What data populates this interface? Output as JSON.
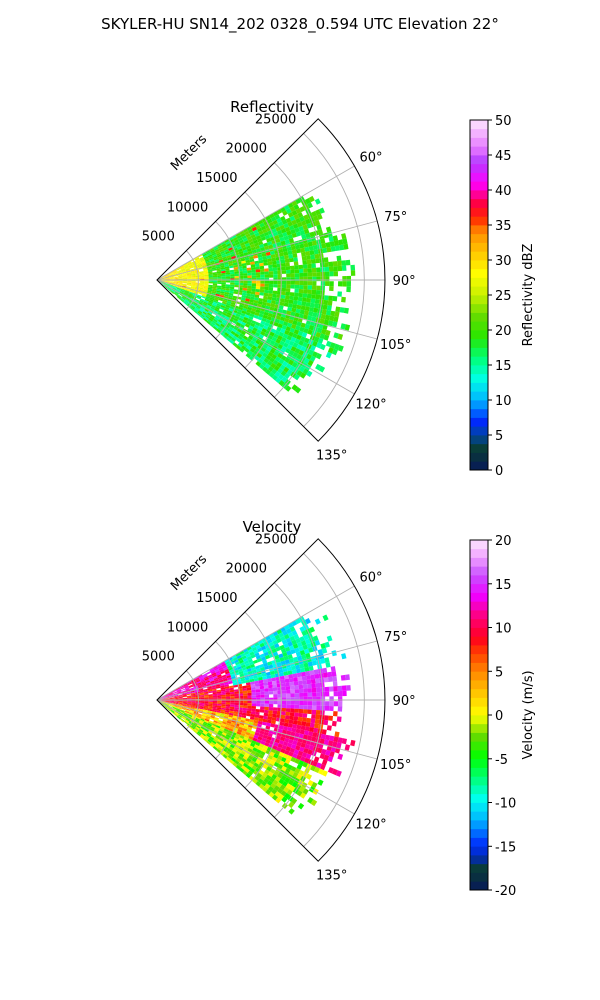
{
  "figure": {
    "title": "SKYLER-HU  SN14_202  0328_0.594 UTC Elevation 22°"
  },
  "chart_data": [
    {
      "type": "heatmap",
      "subtype": "polar-sector",
      "title": "Reflectivity",
      "range_label": "Meters",
      "range_ticks": [
        5000,
        10000,
        15000,
        20000,
        25000
      ],
      "rmax": 27500,
      "azimuth_min": 45,
      "azimuth_max": 135,
      "azimuth_ticks": [
        "60°",
        "75°",
        "90°",
        "105°",
        "120°",
        "135°"
      ],
      "grid": true,
      "data_extent": {
        "azimuth": [
          60,
          130
        ],
        "range_max": [
          19000,
          23000
        ]
      },
      "colorbar": {
        "label": "Reflectivity dBZ",
        "min": 0,
        "max": 50,
        "ticks": [
          0,
          5,
          10,
          15,
          20,
          25,
          30,
          35,
          40,
          45,
          50
        ],
        "position": "right"
      },
      "dominant_values": "mostly 15–25 dBZ, with yellow 25–30 dBZ near radar and red 35 dBZ cores"
    },
    {
      "type": "heatmap",
      "subtype": "polar-sector",
      "title": "Velocity",
      "range_label": "Meters",
      "range_ticks": [
        5000,
        10000,
        15000,
        20000,
        25000
      ],
      "rmax": 27500,
      "azimuth_min": 45,
      "azimuth_max": 135,
      "azimuth_ticks": [
        "60°",
        "75°",
        "90°",
        "105°",
        "120°",
        "135°"
      ],
      "grid": true,
      "data_extent": {
        "azimuth": [
          60,
          130
        ],
        "range_max": [
          19000,
          23000
        ]
      },
      "colorbar": {
        "label": "Velocity (m/s)",
        "min": -20,
        "max": 20,
        "ticks": [
          -20,
          -15,
          -10,
          -5,
          0,
          5,
          10,
          15,
          20
        ],
        "position": "right"
      },
      "dominant_values": "north part -8 to -12 m/s (cyan/green), middle +8 to +15 m/s (red/magenta), south -2 to -5 m/s (yellow/green)"
    }
  ],
  "colors": {
    "grid": "#b0b0b0",
    "frame": "#000000",
    "refl_stops": [
      "#0a1a6e",
      "#00ffff",
      "#00ff00",
      "#ffff00",
      "#ff8000",
      "#ff0000",
      "#ff00ff",
      "#ffffff"
    ],
    "vel_stops": [
      "#0a1a6e",
      "#00ffff",
      "#00ff00",
      "#ffff00",
      "#ff8000",
      "#ff0000",
      "#ff00ff",
      "#ffffff"
    ]
  }
}
